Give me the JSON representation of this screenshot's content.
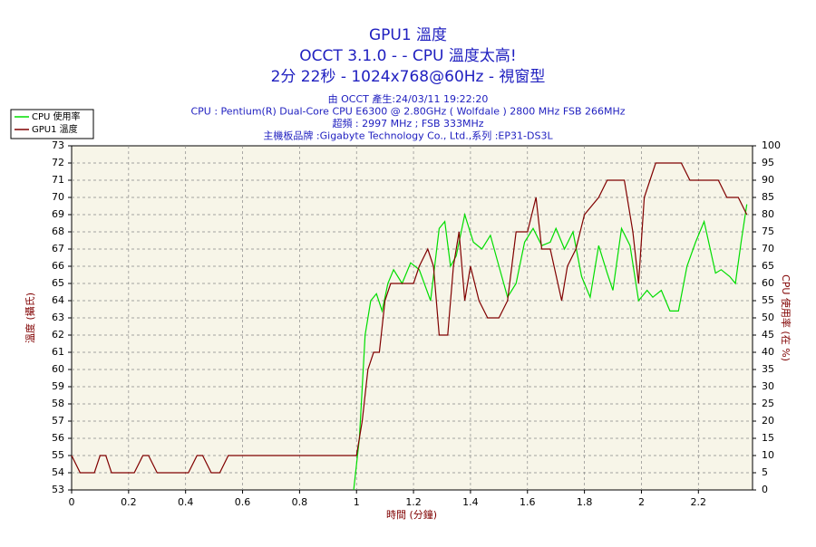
{
  "chart_data": {
    "type": "line",
    "title": [
      "GPU1 溫度",
      "OCCT 3.1.0 -  - CPU 溫度太高!",
      "2分 22秒 - 1024x768@60Hz - 視窗型"
    ],
    "subtitle": [
      "由 OCCT 產生:24/03/11 19:22:20",
      "CPU : Pentium(R) Dual-Core CPU E6300 @ 2.80GHz ( Wolfdale ) 2800 MHz FSB 266MHz",
      "超頻 : 2997 MHz ; FSB 333MHz",
      "主機板品牌 :Gigabyte Technology Co., Ltd.,系列 :EP31-DS3L"
    ],
    "x_label": "時間 (分鐘)",
    "y_label": "溫度 (攝氏)",
    "y2_label": "CPU 使用率 (在 %)",
    "xlim": [
      0,
      2.39
    ],
    "xticks": [
      0,
      0.2,
      0.4,
      0.6,
      0.8,
      1,
      1.2,
      1.4,
      1.6,
      1.8,
      2,
      2.2
    ],
    "ylim": [
      53,
      73
    ],
    "yticks": [
      53,
      54,
      55,
      56,
      57,
      58,
      59,
      60,
      61,
      62,
      63,
      64,
      65,
      66,
      67,
      68,
      69,
      70,
      71,
      72,
      73
    ],
    "y2lim": [
      0,
      100
    ],
    "y2ticks": [
      0,
      5,
      10,
      15,
      20,
      25,
      30,
      35,
      40,
      45,
      50,
      55,
      60,
      65,
      70,
      75,
      80,
      85,
      90,
      95,
      100
    ],
    "grid": true,
    "legend": "top-left",
    "series": [
      {
        "name": "CPU 使用率",
        "color": "#00dd00",
        "axis": "y2",
        "x": [
          0.99,
          1.01,
          1.03,
          1.05,
          1.07,
          1.09,
          1.11,
          1.13,
          1.16,
          1.19,
          1.22,
          1.26,
          1.29,
          1.31,
          1.33,
          1.35,
          1.38,
          1.41,
          1.44,
          1.47,
          1.5,
          1.53,
          1.56,
          1.59,
          1.62,
          1.65,
          1.68,
          1.7,
          1.73,
          1.76,
          1.79,
          1.82,
          1.85,
          1.88,
          1.9,
          1.93,
          1.96,
          1.99,
          2.02,
          2.04,
          2.07,
          2.1,
          2.13,
          2.16,
          2.19,
          2.22,
          2.26,
          2.28,
          2.31,
          2.33,
          2.35,
          2.37
        ],
        "values": [
          0,
          15,
          45,
          55,
          57,
          52,
          60,
          64,
          60,
          66,
          64,
          55,
          76,
          78,
          65,
          68,
          80,
          72,
          70,
          74,
          65,
          56,
          60,
          72,
          76,
          71,
          72,
          76,
          70,
          75,
          62,
          56,
          71,
          63,
          58,
          76,
          71,
          55,
          58,
          56,
          58,
          52,
          52,
          65,
          72,
          78,
          63,
          64,
          62,
          60,
          72,
          83
        ]
      },
      {
        "name": "GPU1 溫度",
        "color": "#800000",
        "x": [
          0,
          0.03,
          0.08,
          0.1,
          0.12,
          0.14,
          0.22,
          0.25,
          0.27,
          0.3,
          0.41,
          0.44,
          0.46,
          0.49,
          0.52,
          0.55,
          1.0,
          1.02,
          1.04,
          1.06,
          1.08,
          1.1,
          1.12,
          1.2,
          1.22,
          1.25,
          1.27,
          1.29,
          1.32,
          1.34,
          1.36,
          1.38,
          1.4,
          1.43,
          1.46,
          1.5,
          1.53,
          1.56,
          1.6,
          1.63,
          1.65,
          1.68,
          1.72,
          1.74,
          1.77,
          1.8,
          1.85,
          1.88,
          1.94,
          1.97,
          1.99,
          2.01,
          2.03,
          2.05,
          2.14,
          2.17,
          2.27,
          2.3,
          2.34,
          2.37
        ],
        "values": [
          55,
          54,
          54,
          55,
          55,
          54,
          54,
          55,
          55,
          54,
          54,
          55,
          55,
          54,
          54,
          55,
          55,
          57,
          60,
          61,
          61,
          64,
          65,
          65,
          66,
          67,
          66,
          62,
          62,
          66,
          68,
          64,
          66,
          64,
          63,
          63,
          64,
          68,
          68,
          70,
          67,
          67,
          64,
          66,
          67,
          69,
          70,
          71,
          71,
          68,
          65,
          70,
          71,
          72,
          72,
          71,
          71,
          70,
          70,
          69
        ]
      }
    ]
  }
}
